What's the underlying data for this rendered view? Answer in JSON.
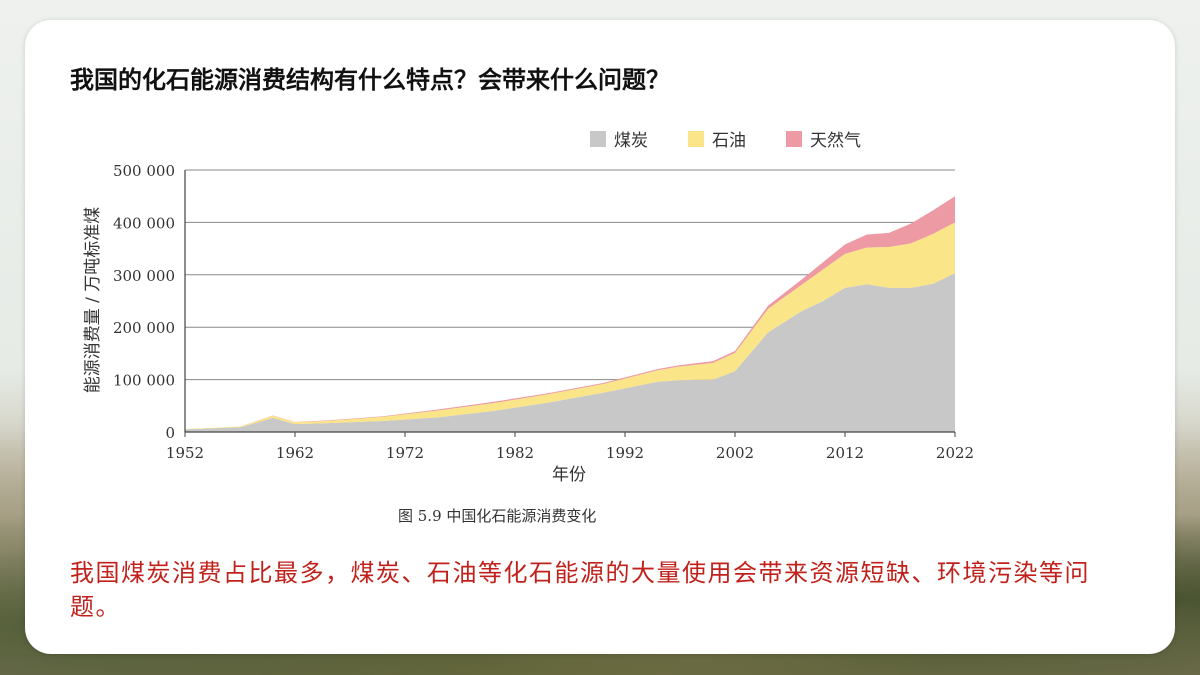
{
  "question": "我国的化石能源消费结构有什么特点？会带来什么问题？",
  "caption": "图 5.9    中国化石能源消费变化",
  "answer": "我国煤炭消费占比最多，煤炭、石油等化石能源的大量使用会带来资源短缺、环境污染等问题。",
  "colors": {
    "coal": "#c8c8c8",
    "oil": "#fae588",
    "gas": "#ee9aa4",
    "grid": "#8a8a8a",
    "axis": "#444444"
  },
  "chart_data": {
    "type": "area",
    "stacked": true,
    "title": "",
    "xlabel": "年份",
    "ylabel": "能源消费量 / 万吨标准煤",
    "xlim": [
      1952,
      2022
    ],
    "ylim": [
      0,
      500000
    ],
    "x_ticks": [
      1952,
      1962,
      1972,
      1982,
      1992,
      2002,
      2012,
      2022
    ],
    "y_ticks": [
      0,
      100000,
      200000,
      300000,
      400000,
      500000
    ],
    "y_tick_labels": [
      "0",
      "100 000",
      "200 000",
      "300 000",
      "400 000",
      "500 000"
    ],
    "grid": "horizontal",
    "legend_position": "top-right",
    "x": [
      1952,
      1957,
      1960,
      1962,
      1965,
      1970,
      1975,
      1980,
      1985,
      1990,
      1995,
      1997,
      2000,
      2002,
      2005,
      2008,
      2010,
      2012,
      2014,
      2016,
      2018,
      2020,
      2022
    ],
    "series": [
      {
        "name": "煤炭",
        "values": [
          5000,
          9000,
          27000,
          15000,
          17000,
          21000,
          28000,
          40000,
          56000,
          75000,
          96000,
          99000,
          100000,
          116000,
          190000,
          230000,
          250000,
          275000,
          282000,
          275000,
          275000,
          283000,
          303000
        ]
      },
      {
        "name": "石油",
        "values": [
          700,
          1500,
          4000,
          3500,
          4200,
          8000,
          13000,
          15000,
          16000,
          16500,
          22000,
          26000,
          32000,
          35000,
          45000,
          50000,
          60000,
          65000,
          70000,
          78000,
          85000,
          95000,
          97000
        ]
      },
      {
        "name": "天然气",
        "values": [
          0,
          100,
          500,
          500,
          900,
          1000,
          2000,
          2500,
          2000,
          2000,
          2300,
          2600,
          3200,
          3600,
          6000,
          10000,
          14000,
          18000,
          25000,
          27000,
          38000,
          45000,
          50000
        ]
      }
    ]
  }
}
